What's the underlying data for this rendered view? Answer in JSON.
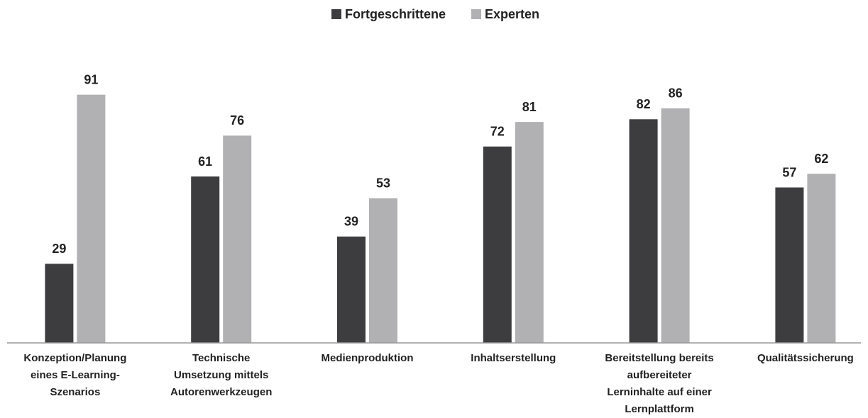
{
  "chart_data": {
    "type": "bar",
    "categories": [
      "Konzeption/Planung\neines E-Learning-\nSzenarios",
      "Technische\nUmsetzung mittels\nAutorenwerkzeugen",
      "Medienproduktion",
      "Inhaltserstellung",
      "Bereitstellung bereits\naufbereiteter\nLerninhalte auf einer\nLernplattform",
      "Qualitätssicherung"
    ],
    "series": [
      {
        "name": "Fortgeschrittene",
        "color": "#3d3d3f",
        "values": [
          29,
          61,
          39,
          72,
          82,
          57
        ]
      },
      {
        "name": "Experten",
        "color": "#b1b1b3",
        "values": [
          91,
          76,
          53,
          81,
          86,
          62
        ]
      }
    ],
    "ylim": [
      0,
      100
    ]
  }
}
